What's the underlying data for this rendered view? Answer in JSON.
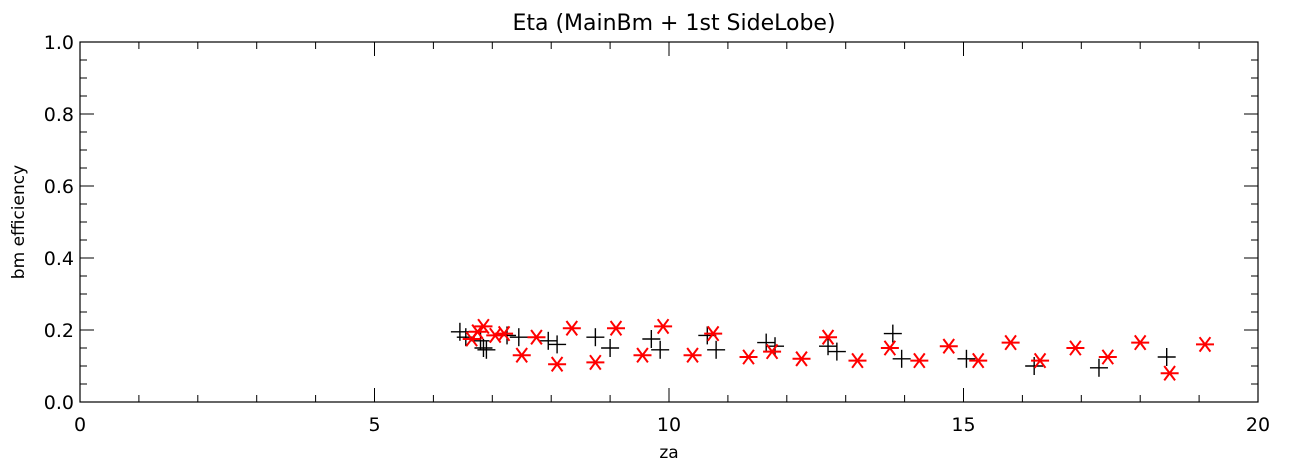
{
  "chart_data": {
    "type": "scatter",
    "title": "Eta (MainBm + 1st SideLobe)",
    "xlabel": "za",
    "ylabel": "bm efficiency",
    "xlim": [
      0,
      20
    ],
    "ylim": [
      0.0,
      1.0
    ],
    "x_ticks": [
      "0",
      "5",
      "10",
      "15",
      "20"
    ],
    "y_ticks": [
      "0.0",
      "0.2",
      "0.4",
      "0.6",
      "0.8",
      "1.0"
    ],
    "grid": false,
    "series": [
      {
        "marker": "plus",
        "color": "#000000",
        "points": [
          [
            6.45,
            0.195
          ],
          [
            6.55,
            0.18
          ],
          [
            6.8,
            0.17
          ],
          [
            6.85,
            0.15
          ],
          [
            6.9,
            0.145
          ],
          [
            7.25,
            0.185
          ],
          [
            7.45,
            0.18
          ],
          [
            7.95,
            0.17
          ],
          [
            8.1,
            0.16
          ],
          [
            8.75,
            0.18
          ],
          [
            9.0,
            0.15
          ],
          [
            9.7,
            0.175
          ],
          [
            9.85,
            0.145
          ],
          [
            10.65,
            0.185
          ],
          [
            10.8,
            0.145
          ],
          [
            11.65,
            0.165
          ],
          [
            11.8,
            0.155
          ],
          [
            12.7,
            0.155
          ],
          [
            12.85,
            0.14
          ],
          [
            13.8,
            0.19
          ],
          [
            13.95,
            0.12
          ],
          [
            15.05,
            0.12
          ],
          [
            16.2,
            0.1
          ],
          [
            17.3,
            0.095
          ],
          [
            18.45,
            0.125
          ]
        ]
      },
      {
        "marker": "asterisk",
        "color": "#ff0000",
        "points": [
          [
            6.65,
            0.175
          ],
          [
            6.75,
            0.195
          ],
          [
            6.85,
            0.21
          ],
          [
            7.05,
            0.185
          ],
          [
            7.2,
            0.19
          ],
          [
            7.5,
            0.13
          ],
          [
            7.75,
            0.18
          ],
          [
            8.1,
            0.105
          ],
          [
            8.35,
            0.205
          ],
          [
            8.75,
            0.11
          ],
          [
            9.1,
            0.205
          ],
          [
            9.55,
            0.13
          ],
          [
            9.9,
            0.21
          ],
          [
            10.4,
            0.13
          ],
          [
            10.75,
            0.19
          ],
          [
            11.35,
            0.125
          ],
          [
            11.75,
            0.14
          ],
          [
            12.25,
            0.12
          ],
          [
            12.7,
            0.18
          ],
          [
            13.2,
            0.115
          ],
          [
            13.75,
            0.15
          ],
          [
            14.25,
            0.115
          ],
          [
            14.75,
            0.155
          ],
          [
            15.25,
            0.115
          ],
          [
            15.8,
            0.165
          ],
          [
            16.3,
            0.115
          ],
          [
            16.9,
            0.15
          ],
          [
            17.45,
            0.125
          ],
          [
            18.0,
            0.165
          ],
          [
            18.5,
            0.08
          ],
          [
            19.1,
            0.16
          ]
        ]
      }
    ]
  }
}
